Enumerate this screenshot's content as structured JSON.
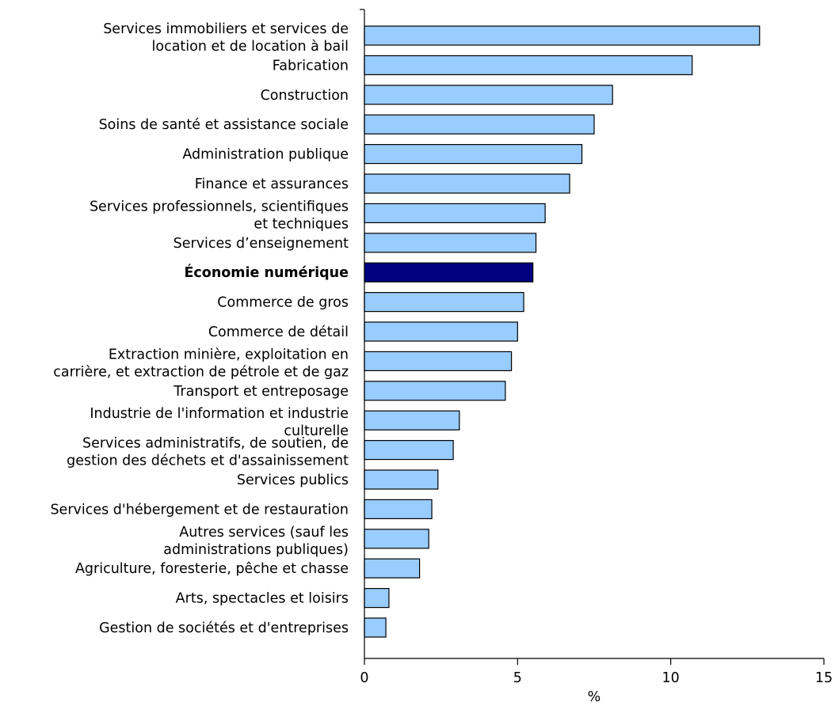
{
  "chart_data": {
    "type": "bar",
    "orientation": "horizontal",
    "title": "",
    "xlabel": "%",
    "ylabel": "",
    "xlim": [
      0,
      15
    ],
    "x_ticks": [
      0,
      5,
      10,
      15
    ],
    "grid": false,
    "legend": "none",
    "colors": {
      "bar": "#99CCFF",
      "highlight": "#000080",
      "stroke": "#000000"
    },
    "categories": [
      "Services immobiliers et services de location et de location à bail",
      "Fabrication",
      "Construction",
      "Soins de santé et assistance sociale",
      "Administration publique",
      "Finance et assurances",
      "Services professionnels, scientifiques et techniques",
      "Services d’enseignement",
      "Économie numérique",
      "Commerce de gros",
      "Commerce de détail",
      "Extraction minière, exploitation en carrière, et extraction de pétrole et de gaz",
      "Transport et entreposage",
      "Industrie de l'information et industrie culturelle",
      "Services administratifs, de soutien, de gestion des déchets et d'assainissement",
      "Services publics",
      "Services d'hébergement et de restauration",
      "Autres services (sauf les administrations publiques)",
      "Agriculture, foresterie, pêche et chasse",
      "Arts, spectacles et loisirs",
      "Gestion de sociétés et d'entreprises"
    ],
    "label_lines": [
      [
        "Services immobiliers et services de",
        "location et de location à bail"
      ],
      [
        "Fabrication"
      ],
      [
        "Construction"
      ],
      [
        "Soins de santé et assistance sociale"
      ],
      [
        "Administration publique"
      ],
      [
        "Finance et assurances"
      ],
      [
        "Services professionnels, scientifiques",
        "et techniques"
      ],
      [
        "Services d’enseignement"
      ],
      [
        "Économie numérique"
      ],
      [
        "Commerce de gros"
      ],
      [
        "Commerce de détail"
      ],
      [
        "Extraction minière, exploitation en",
        "carrière, et extraction de pétrole et de gaz"
      ],
      [
        "Transport et entreposage"
      ],
      [
        "Industrie de l'information et industrie",
        "culturelle"
      ],
      [
        "Services administratifs, de soutien, de",
        "gestion des déchets et d'assainissement"
      ],
      [
        "Services publics"
      ],
      [
        "Services d'hébergement et de restauration"
      ],
      [
        "Autres services (sauf les",
        "administrations publiques)"
      ],
      [
        "Agriculture, foresterie, pêche et chasse"
      ],
      [
        "Arts, spectacles et loisirs"
      ],
      [
        "Gestion de sociétés et d'entreprises"
      ]
    ],
    "values": [
      12.9,
      10.7,
      8.1,
      7.5,
      7.1,
      6.7,
      5.9,
      5.6,
      5.5,
      5.2,
      5.0,
      4.8,
      4.6,
      3.1,
      2.9,
      2.4,
      2.2,
      2.1,
      1.8,
      0.8,
      0.7
    ],
    "highlight_index": 8
  }
}
